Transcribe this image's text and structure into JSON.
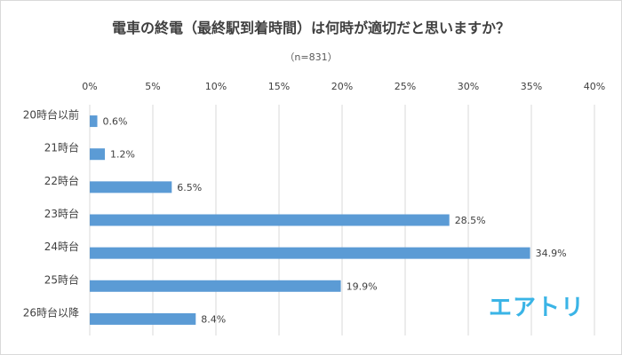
{
  "header": {
    "title": "電車の終電（最終駅到着時間）は何時が適切だと思いますか？",
    "subtitle": "（n=831）"
  },
  "logo": {
    "text": "エアトリ",
    "color": "#3ab4e6"
  },
  "colors": {
    "bar": "#5b9bd5",
    "grid": "#d9d9d9",
    "text": "#404040"
  },
  "chart_data": {
    "type": "bar",
    "orientation": "horizontal",
    "title": "電車の終電（最終駅到着時間）は何時が適切だと思いますか？",
    "subtitle": "（n=831）",
    "categories": [
      "20時台以前",
      "21時台",
      "22時台",
      "23時台",
      "24時台",
      "25時台",
      "26時台以降"
    ],
    "values": [
      0.6,
      1.2,
      6.5,
      28.5,
      34.9,
      19.9,
      8.4
    ],
    "value_labels": [
      "0.6%",
      "1.2%",
      "6.5%",
      "28.5%",
      "34.9%",
      "19.9%",
      "8.4%"
    ],
    "xlim": [
      0,
      40
    ],
    "xticks": [
      0,
      5,
      10,
      15,
      20,
      25,
      30,
      35,
      40
    ],
    "xtick_labels": [
      "0%",
      "5%",
      "10%",
      "15%",
      "20%",
      "25%",
      "30%",
      "35%",
      "40%"
    ],
    "axis_position": "top",
    "grid": true,
    "legend": "none"
  }
}
